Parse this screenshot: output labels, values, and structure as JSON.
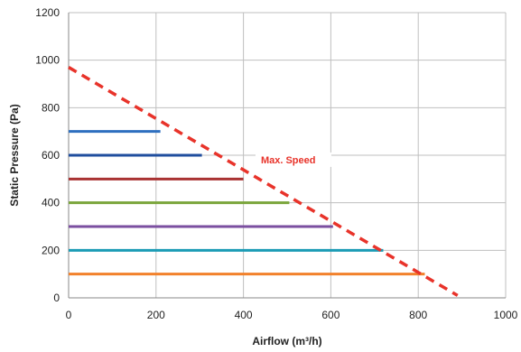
{
  "chart_data": {
    "type": "line",
    "xlabel": "Airflow (m³/h)",
    "ylabel": "Static Pressure (Pa)",
    "xlim": [
      0,
      1000
    ],
    "ylim": [
      0,
      1200
    ],
    "x_ticks": [
      0,
      200,
      400,
      600,
      800,
      1000
    ],
    "y_ticks": [
      0,
      200,
      400,
      600,
      800,
      1000,
      1200
    ],
    "grid": true,
    "legend": "none",
    "series": [
      {
        "color": "#2e6fbf",
        "x": [
          0,
          210
        ],
        "y": [
          700,
          700
        ]
      },
      {
        "color": "#1f4e9e",
        "x": [
          0,
          305
        ],
        "y": [
          600,
          600
        ]
      },
      {
        "color": "#a93232",
        "x": [
          0,
          400
        ],
        "y": [
          500,
          500
        ]
      },
      {
        "color": "#7aa53b",
        "x": [
          0,
          505
        ],
        "y": [
          400,
          400
        ]
      },
      {
        "color": "#7b4fa0",
        "x": [
          0,
          605
        ],
        "y": [
          300,
          300
        ]
      },
      {
        "color": "#1b9bb5",
        "x": [
          0,
          720
        ],
        "y": [
          200,
          200
        ]
      },
      {
        "color": "#f2812b",
        "x": [
          0,
          815
        ],
        "y": [
          100,
          100
        ]
      },
      {
        "name": "Max. Speed",
        "color": "#e8332a",
        "dashed": true,
        "x": [
          0,
          890
        ],
        "y": [
          970,
          10
        ]
      }
    ],
    "annotations": [
      {
        "text": "Max. Speed",
        "x": 440,
        "y": 570,
        "color": "#e8332a"
      }
    ]
  }
}
